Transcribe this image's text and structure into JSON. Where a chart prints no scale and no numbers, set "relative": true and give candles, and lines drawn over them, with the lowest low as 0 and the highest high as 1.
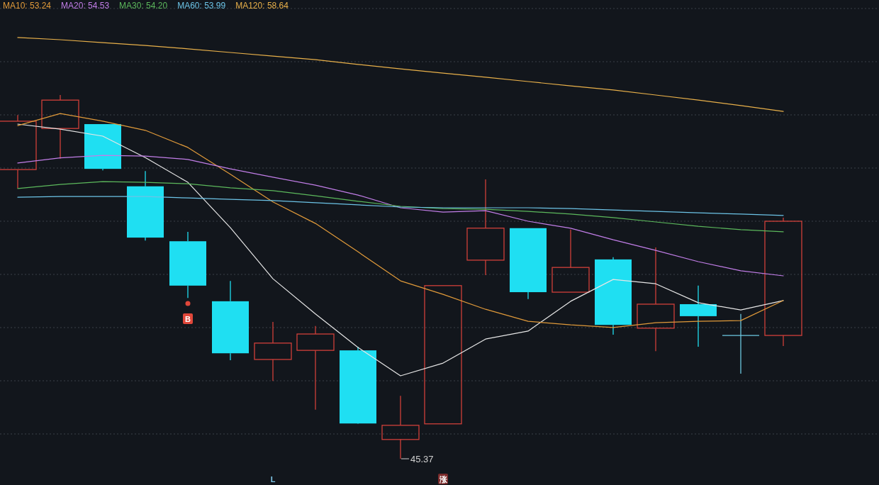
{
  "chart_data": {
    "type": "candlestick",
    "relative": true,
    "grid": true,
    "legend": "top left",
    "categories": [
      null,
      null,
      null,
      null,
      null,
      null,
      null,
      null,
      null,
      null,
      null,
      null,
      null,
      null,
      null,
      null,
      null,
      null,
      null
    ],
    "ohlc": [
      [
        0.795,
        0.945,
        0.743,
        0.928
      ],
      [
        0.908,
        1.0,
        0.825,
        0.986
      ],
      [
        0.92,
        0.92,
        0.793,
        0.797
      ],
      [
        0.749,
        0.791,
        0.6,
        0.608
      ],
      [
        0.598,
        0.624,
        0.442,
        0.476
      ],
      [
        0.433,
        0.489,
        0.271,
        0.29
      ],
      [
        0.273,
        0.376,
        0.214,
        0.318
      ],
      [
        0.298,
        0.365,
        0.135,
        0.343
      ],
      [
        0.298,
        0.308,
        0.096,
        0.097
      ],
      [
        0.053,
        0.173,
        0.0,
        0.092
      ],
      [
        0.096,
        0.476,
        0.096,
        0.476
      ],
      [
        0.546,
        0.768,
        0.505,
        0.634
      ],
      [
        0.634,
        0.634,
        0.439,
        0.458
      ],
      [
        0.458,
        0.63,
        0.458,
        0.526
      ],
      [
        0.548,
        0.554,
        0.341,
        0.368
      ],
      [
        0.359,
        0.581,
        0.296,
        0.425
      ],
      [
        0.425,
        0.476,
        0.308,
        0.392
      ],
      [
        0.339,
        0.398,
        0.234,
        0.339
      ],
      [
        0.339,
        0.663,
        0.31,
        0.653
      ]
    ],
    "colors": [
      "#d0403a",
      "#d0403a",
      "#1fdff2",
      "#1fdff2",
      "#1fdff2",
      "#1fdff2",
      "#d0403a",
      "#d0403a",
      "#1fdff2",
      "#d0403a",
      "#d0403a",
      "#d0403a",
      "#1fdff2",
      "#d0403a",
      "#1fdff2",
      "#d0403a",
      "#1fdff2",
      "#6cc8e0",
      "#d0403a"
    ],
    "series": [
      {
        "type": "line",
        "color": "#e6e6e6",
        "values": [
          0.92,
          0.906,
          0.887,
          0.828,
          0.76,
          0.635,
          0.495,
          0.398,
          0.306,
          0.228,
          0.263,
          0.329,
          0.351,
          0.433,
          0.493,
          0.481,
          0.429,
          0.409,
          0.435
        ]
      },
      {
        "type": "line",
        "name": "MA10: 53.24",
        "color": "#e09a3a",
        "values": [
          0.916,
          0.949,
          0.928,
          0.903,
          0.856,
          0.782,
          0.706,
          0.647,
          0.569,
          0.489,
          0.452,
          0.411,
          0.378,
          0.368,
          0.361,
          0.374,
          0.378,
          0.38,
          0.435
        ]
      },
      {
        "type": "line",
        "name": "MA20: 54.53",
        "color": "#c27ee8",
        "values": [
          0.813,
          0.827,
          0.834,
          0.832,
          0.823,
          0.797,
          0.774,
          0.752,
          0.725,
          0.69,
          0.678,
          0.682,
          0.653,
          0.634,
          0.602,
          0.573,
          0.542,
          0.517,
          0.503
        ]
      },
      {
        "type": "line",
        "name": "MA30: 54.20",
        "color": "#5cb85c",
        "values": [
          0.743,
          0.754,
          0.762,
          0.76,
          0.756,
          0.745,
          0.737,
          0.723,
          0.708,
          0.694,
          0.688,
          0.686,
          0.68,
          0.673,
          0.663,
          0.651,
          0.639,
          0.63,
          0.624
        ]
      },
      {
        "type": "line",
        "name": "MA60: 53.99",
        "color": "#6cc3e6",
        "values": [
          0.719,
          0.721,
          0.721,
          0.721,
          0.717,
          0.713,
          0.71,
          0.704,
          0.698,
          0.692,
          0.69,
          0.69,
          0.69,
          0.688,
          0.684,
          0.68,
          0.676,
          0.673,
          0.669
        ]
      },
      {
        "type": "line",
        "name": "MA120: 58.64",
        "color": "#e8b04a",
        "values": [
          1.158,
          1.152,
          1.144,
          1.136,
          1.127,
          1.117,
          1.107,
          1.097,
          1.084,
          1.072,
          1.06,
          1.049,
          1.037,
          1.025,
          1.014,
          1.0,
          0.986,
          0.971,
          0.955
        ]
      }
    ],
    "annotations": [
      "45.37",
      "B",
      "L",
      "涨"
    ]
  }
}
